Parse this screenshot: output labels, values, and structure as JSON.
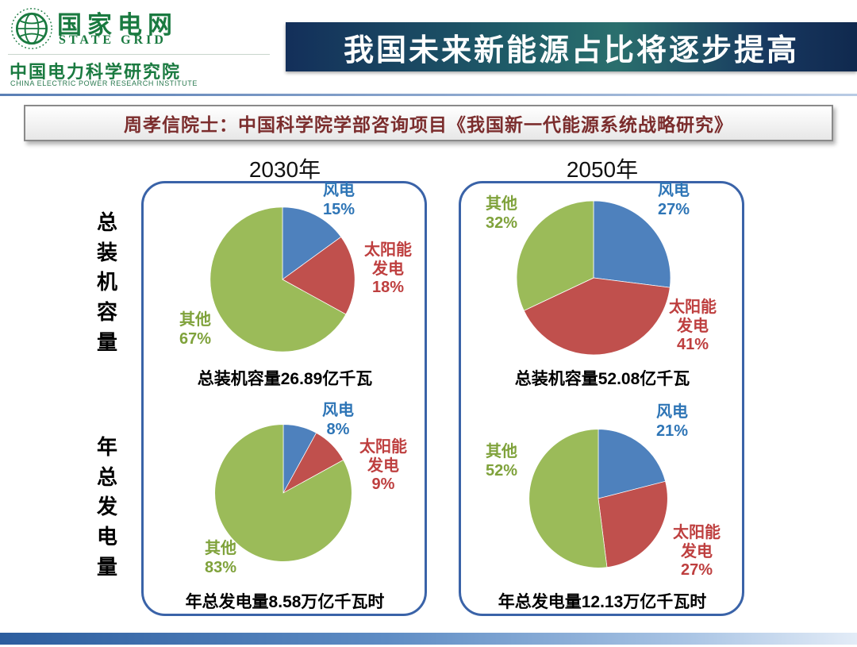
{
  "header": {
    "logo": {
      "org_cn": "国家电网",
      "org_en": "STATE GRID",
      "institute_cn": "中国电力科学研究院",
      "institute_en": "CHINA ELECTRIC POWER RESEARCH INSTITUTE"
    },
    "title": "我国未来新能源占比将逐步提高"
  },
  "subtitle": "周孝信院士：中国科学院学部咨询项目《我国新一代能源系统战略研究》",
  "rows": [
    {
      "label": "总装机容量"
    },
    {
      "label": "年总发电量"
    }
  ],
  "columns": [
    {
      "year": "2030年"
    },
    {
      "year": "2050年"
    }
  ],
  "colors": {
    "wind_slice": "#4E81BD",
    "wind_label": "#2E75B6",
    "solar_slice": "#C0504D",
    "solar_label": "#BE3F3F",
    "other_slice": "#9BBB59",
    "other_label": "#7FA23B",
    "panel_border": "#3A63A8",
    "subtitle_text": "#7B2D2D",
    "logo_green": "#1A7A40"
  },
  "chart_data": [
    {
      "type": "pie",
      "caption": "总装机容量26.89亿千瓦",
      "series": [
        {
          "name": "风电",
          "value": 15,
          "color": "#4E81BD"
        },
        {
          "name": "太阳能发电",
          "value": 18,
          "color": "#C0504D"
        },
        {
          "name": "其他",
          "value": 67,
          "color": "#9BBB59"
        }
      ]
    },
    {
      "type": "pie",
      "caption": "年总发电量8.58万亿千瓦时",
      "series": [
        {
          "name": "风电",
          "value": 8,
          "color": "#4E81BD"
        },
        {
          "name": "太阳能发电",
          "value": 9,
          "color": "#C0504D"
        },
        {
          "name": "其他",
          "value": 83,
          "color": "#9BBB59"
        }
      ]
    },
    {
      "type": "pie",
      "caption": "总装机容量52.08亿千瓦",
      "series": [
        {
          "name": "风电",
          "value": 27,
          "color": "#4E81BD"
        },
        {
          "name": "太阳能发电",
          "value": 41,
          "color": "#C0504D"
        },
        {
          "name": "其他",
          "value": 32,
          "color": "#9BBB59"
        }
      ]
    },
    {
      "type": "pie",
      "caption": "年总发电量12.13万亿千瓦时",
      "series": [
        {
          "name": "风电",
          "value": 21,
          "color": "#4E81BD"
        },
        {
          "name": "太阳能发电",
          "value": 27,
          "color": "#C0504D"
        },
        {
          "name": "其他",
          "value": 52,
          "color": "#9BBB59"
        }
      ]
    }
  ]
}
